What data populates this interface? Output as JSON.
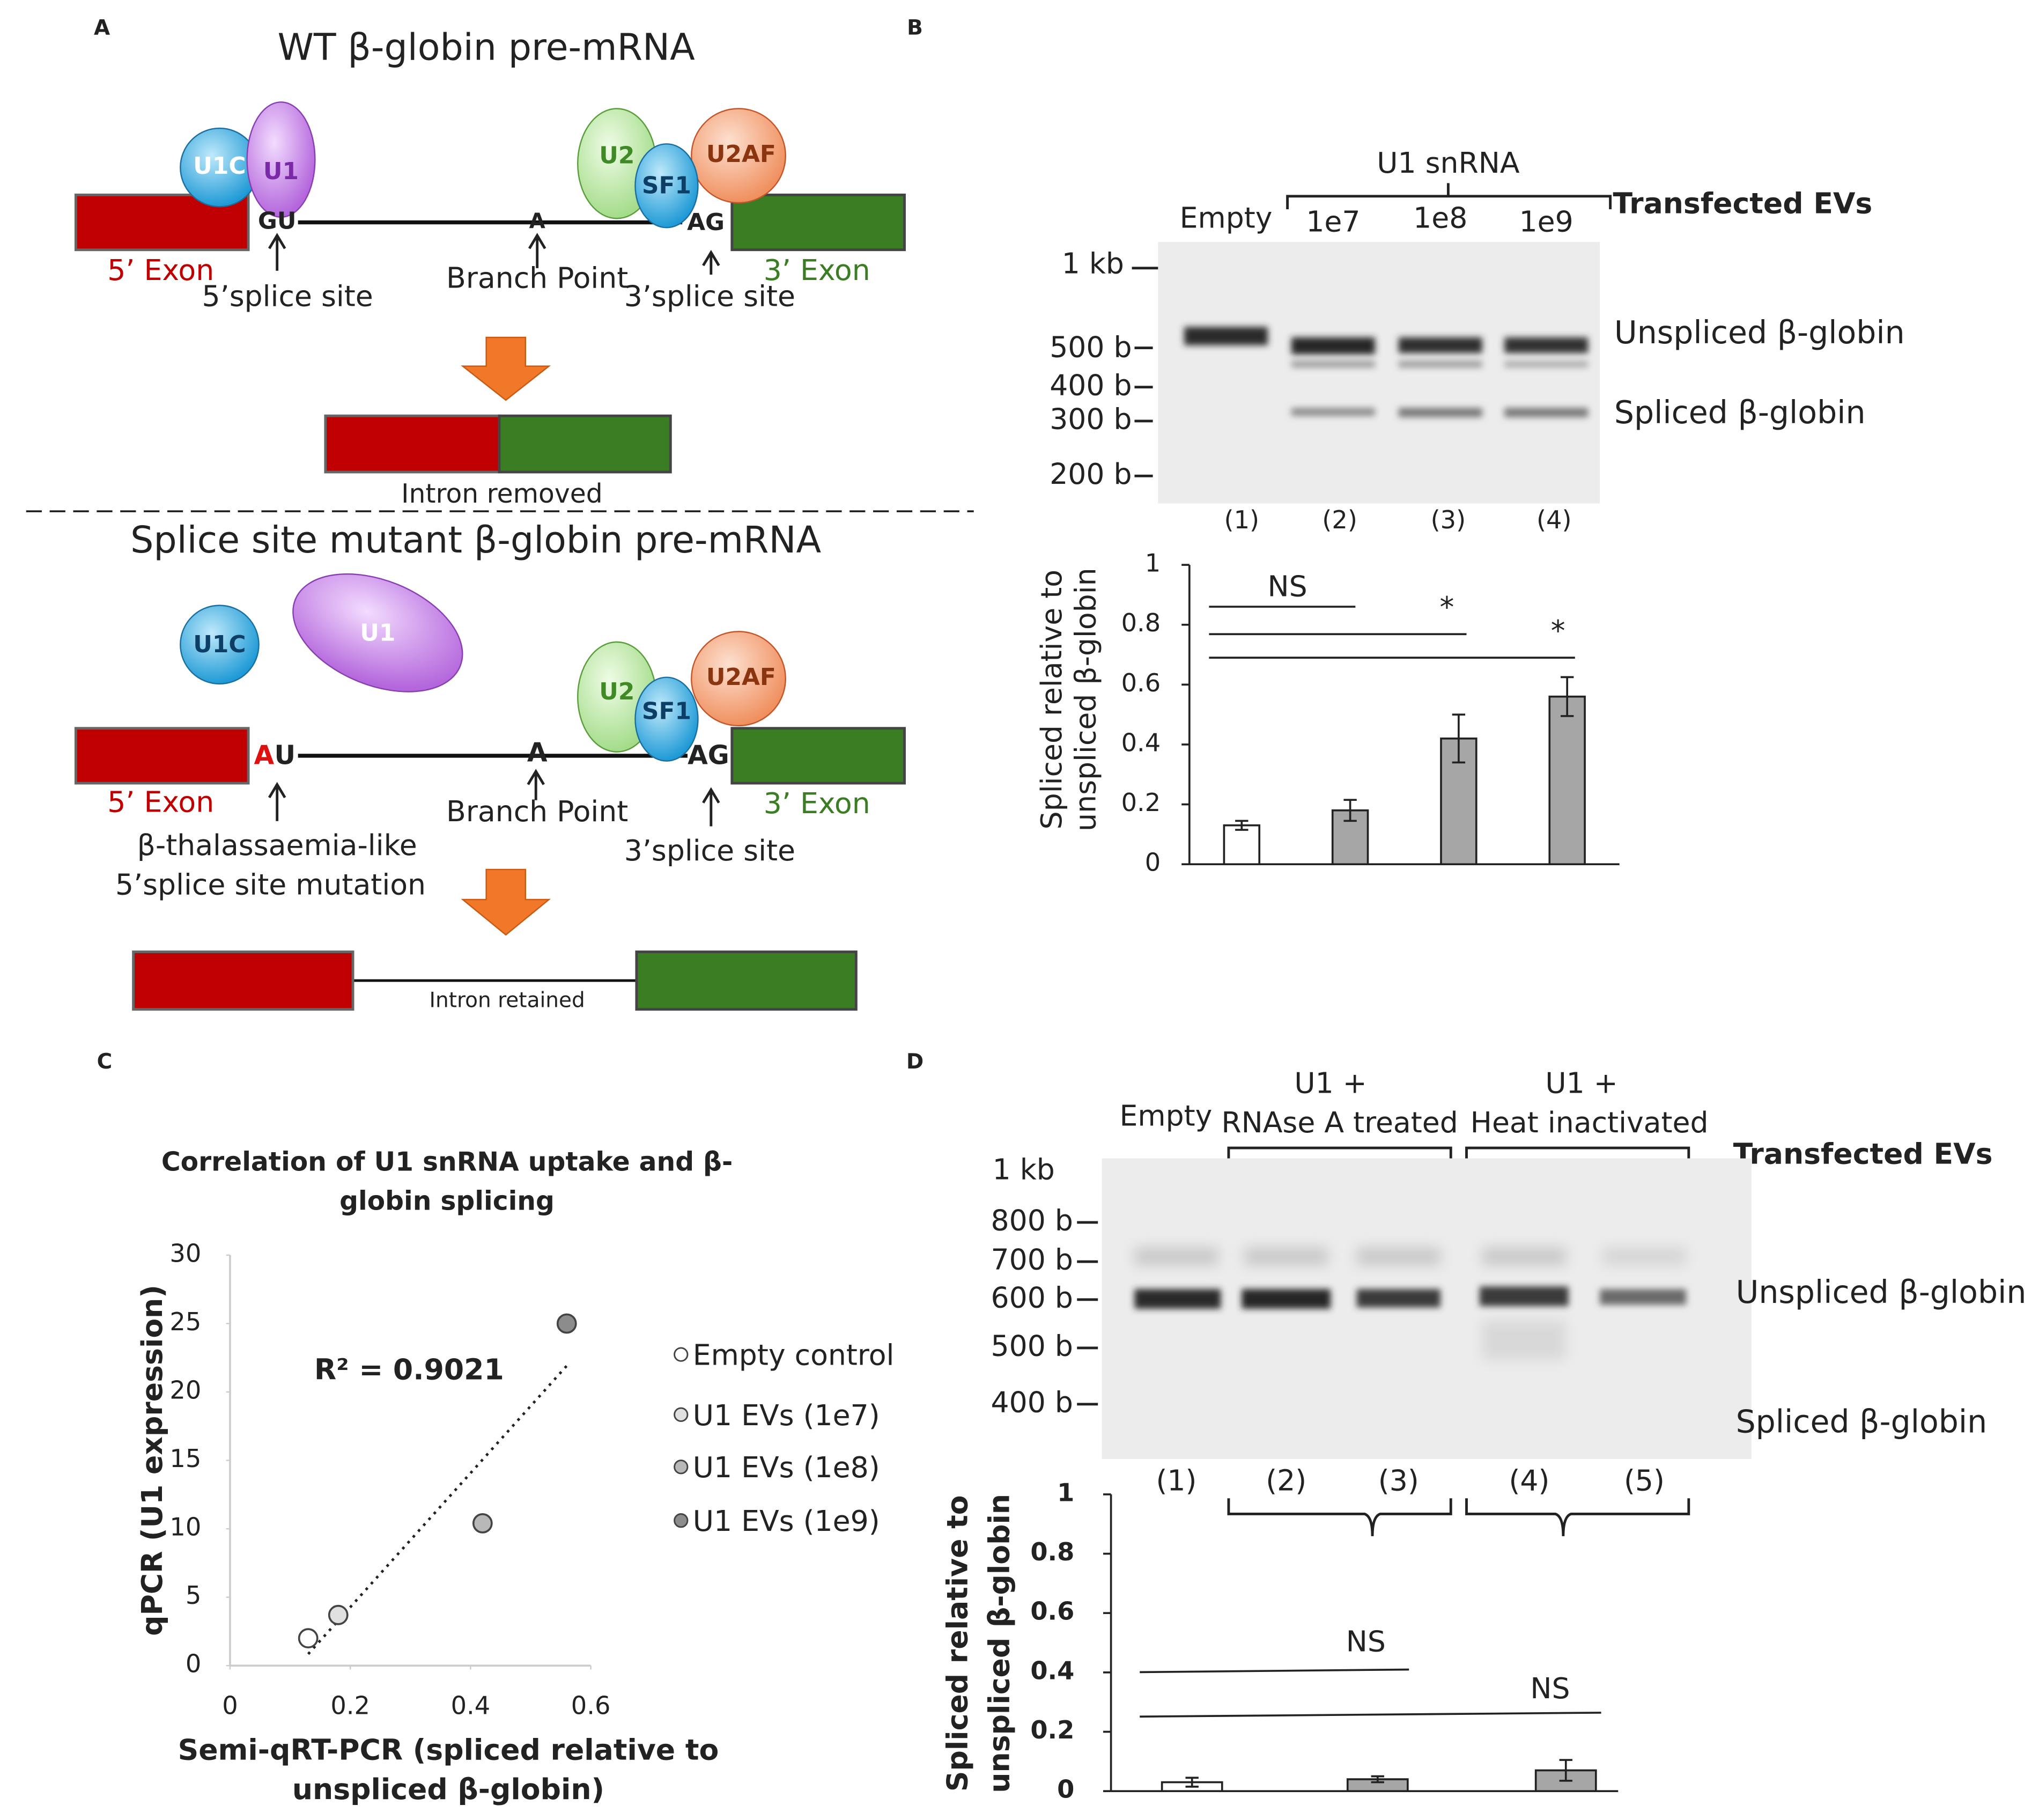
{
  "figure": {
    "panel_labels": [
      "A",
      "B",
      "C",
      "D"
    ],
    "diagram": {
      "wt": {
        "title": "WT β-globin pre-mRNA",
        "proteins": [
          "U1C",
          "U1",
          "U2",
          "SF1",
          "U2AF"
        ],
        "sites": [
          "GU",
          "A",
          "AG"
        ],
        "labels": [
          "5’ Exon",
          "5’splice site",
          "Branch Point",
          "3’splice site",
          "3’ Exon"
        ],
        "result": "Intron removed"
      },
      "mutant": {
        "title": "Splice site mutant β-globin pre-mRNA",
        "proteins": [
          "U1C",
          "U1",
          "U2",
          "SF1",
          "U2AF"
        ],
        "sites": [
          "A",
          "U",
          "A",
          "AG"
        ],
        "labels": [
          "5’ Exon",
          "Branch Point",
          "3’ Exon",
          "β-thalassaemia-like",
          "5’splice site mutation",
          "3’splice site"
        ],
        "result": "Intron retained"
      }
    },
    "gel_b": {
      "group": "U1 snRNA",
      "lanes_top": [
        "Empty",
        "1e7",
        "1e8",
        "1e9"
      ],
      "condition": "Transfected EVs",
      "markers": [
        "1 kb",
        "500 b",
        "400 b",
        "300 b",
        "200 b"
      ],
      "bands": [
        "Unspliced β-globin",
        "Spliced β-globin"
      ],
      "lane_numbers": [
        "(1)",
        "(2)",
        "(3)",
        "(4)"
      ]
    },
    "gel_d": {
      "lanes_top": [
        "Empty",
        "U1 +",
        "RNAse A treated",
        "U1 +",
        "Heat inactivated"
      ],
      "condition": "Transfected EVs",
      "markers": [
        "1 kb",
        "800 b",
        "700 b",
        "600 b",
        "500 b",
        "400 b"
      ],
      "bands": [
        "Unspliced β-globin",
        "Spliced β-globin"
      ],
      "lane_numbers": [
        "(1)",
        "(2)",
        "(3)",
        "(4)",
        "(5)"
      ]
    }
  },
  "chart_data": [
    {
      "type": "bar",
      "y_label": [
        "Spliced relative to",
        "unspliced β-globin"
      ],
      "values": [
        0.13,
        0.18,
        0.42,
        0.56
      ],
      "errors": [
        0.015,
        0.035,
        0.08,
        0.065
      ],
      "colors": [
        "#ffffff",
        "#a6a6a6",
        "#a6a6a6",
        "#a6a6a6"
      ],
      "ylim": [
        0,
        1
      ],
      "yticks": [
        0,
        0.2,
        0.4,
        0.6,
        0.8,
        1
      ],
      "annotations": [
        "NS",
        "*",
        "*"
      ]
    },
    {
      "type": "scatter",
      "title": [
        "Correlation of U1 snRNA uptake and β-",
        "globin splicing"
      ],
      "x_label": [
        "Semi-qRT-PCR (spliced relative to",
        "unspliced β-globin)"
      ],
      "y_label": "qPCR (U1 expression)",
      "series": [
        {
          "name": "Empty control",
          "color": "#ffffff",
          "x": [
            0.13
          ],
          "values": [
            2
          ]
        },
        {
          "name": "U1 EVs (1e7)",
          "color": "#e0e0e0",
          "x": [
            0.18
          ],
          "values": [
            3.7
          ]
        },
        {
          "name": "U1 EVs (1e8)",
          "color": "#b8b8b8",
          "x": [
            0.42
          ],
          "values": [
            10.4
          ]
        },
        {
          "name": "U1 EVs (1e9)",
          "color": "#8c8c8c",
          "x": [
            0.56
          ],
          "values": [
            25
          ]
        }
      ],
      "xlim": [
        0,
        0.6
      ],
      "xticks": [
        0,
        0.2,
        0.4,
        0.6
      ],
      "ylim": [
        0,
        30
      ],
      "yticks": [
        0,
        5,
        10,
        15,
        20,
        25,
        30
      ],
      "annotation": "R² = 0.9021",
      "trendline": true
    },
    {
      "type": "bar",
      "y_label": [
        "Spliced relative to",
        "unspliced β-globin"
      ],
      "values": [
        0.03,
        0.04,
        0.07
      ],
      "errors": [
        0.015,
        0.01,
        0.035
      ],
      "colors": [
        "#ffffff",
        "#a6a6a6",
        "#a6a6a6"
      ],
      "ylim": [
        0,
        1
      ],
      "yticks": [
        0,
        0.2,
        0.4,
        0.6,
        0.8,
        1
      ],
      "annotations": [
        "NS",
        "NS"
      ]
    }
  ]
}
